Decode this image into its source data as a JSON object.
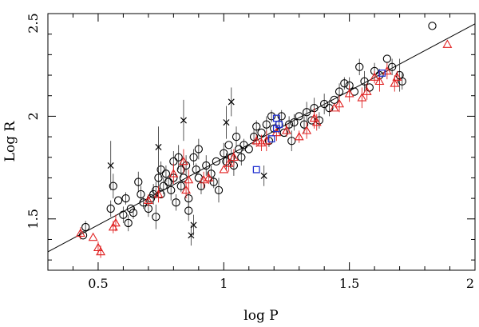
{
  "chart_data": {
    "type": "scatter",
    "title": "",
    "xlabel": "log P",
    "ylabel": "Log R",
    "xlim": [
      0.3,
      2.0
    ],
    "ylim": [
      1.25,
      2.5
    ],
    "grid": false,
    "xticks": [
      {
        "value": 0.5,
        "label": "0.5"
      },
      {
        "value": 1.0,
        "label": "1"
      },
      {
        "value": 1.5,
        "label": "1.5"
      },
      {
        "value": 2.0,
        "label": "2"
      }
    ],
    "yticks": [
      {
        "value": 1.5,
        "label": "1.5"
      },
      {
        "value": 2.0,
        "label": "2"
      },
      {
        "value": 2.5,
        "label": "2.5"
      }
    ],
    "fit_line": {
      "x": [
        0.3,
        2.0
      ],
      "y": [
        1.34,
        2.45
      ]
    },
    "series": [
      {
        "name": "circles",
        "marker": "circle",
        "color": "#000000",
        "points": [
          [
            0.44,
            1.42,
            0
          ],
          [
            0.45,
            1.46,
            0.03
          ],
          [
            0.55,
            1.55,
            0.04
          ],
          [
            0.56,
            1.66,
            0.06
          ],
          [
            0.58,
            1.59,
            0
          ],
          [
            0.6,
            1.52,
            0.04
          ],
          [
            0.61,
            1.6,
            0.03
          ],
          [
            0.62,
            1.48,
            0.04
          ],
          [
            0.63,
            1.55,
            0
          ],
          [
            0.64,
            1.53,
            0.03
          ],
          [
            0.66,
            1.68,
            0.05
          ],
          [
            0.67,
            1.62,
            0.04
          ],
          [
            0.68,
            1.58,
            0.03
          ],
          [
            0.7,
            1.55,
            0.04
          ],
          [
            0.71,
            1.6,
            0
          ],
          [
            0.72,
            1.62,
            0.05
          ],
          [
            0.73,
            1.64,
            0.04
          ],
          [
            0.73,
            1.51,
            0.06
          ],
          [
            0.74,
            1.7,
            0.05
          ],
          [
            0.75,
            1.74,
            0.04
          ],
          [
            0.75,
            1.62,
            0
          ],
          [
            0.76,
            1.66,
            0.04
          ],
          [
            0.77,
            1.72,
            0.04
          ],
          [
            0.78,
            1.68,
            0.03
          ],
          [
            0.79,
            1.64,
            0.05
          ],
          [
            0.8,
            1.78,
            0.05
          ],
          [
            0.8,
            1.7,
            0
          ],
          [
            0.81,
            1.58,
            0.04
          ],
          [
            0.82,
            1.8,
            0.06
          ],
          [
            0.83,
            1.74,
            0.04
          ],
          [
            0.83,
            1.66,
            0.03
          ],
          [
            0.84,
            1.7,
            0
          ],
          [
            0.85,
            1.76,
            0.05
          ],
          [
            0.86,
            1.6,
            0.04
          ],
          [
            0.86,
            1.54,
            0.05
          ],
          [
            0.88,
            1.8,
            0.04
          ],
          [
            0.89,
            1.74,
            0.03
          ],
          [
            0.9,
            1.7,
            0
          ],
          [
            0.9,
            1.84,
            0.05
          ],
          [
            0.91,
            1.66,
            0.04
          ],
          [
            0.93,
            1.76,
            0.05
          ],
          [
            0.95,
            1.72,
            0.04
          ],
          [
            0.96,
            1.68,
            0.03
          ],
          [
            0.97,
            1.78,
            0
          ],
          [
            0.98,
            1.64,
            0.06
          ],
          [
            1.0,
            1.82,
            0.05
          ],
          [
            1.01,
            1.78,
            0.04
          ],
          [
            1.02,
            1.86,
            0
          ],
          [
            1.03,
            1.8,
            0.04
          ],
          [
            1.04,
            1.76,
            0.05
          ],
          [
            1.05,
            1.9,
            0.05
          ],
          [
            1.06,
            1.84,
            0
          ],
          [
            1.07,
            1.8,
            0.04
          ],
          [
            1.08,
            1.86,
            0.03
          ],
          [
            1.1,
            1.84,
            0
          ],
          [
            1.12,
            1.9,
            0.04
          ],
          [
            1.13,
            1.95,
            0.03
          ],
          [
            1.15,
            1.92,
            0
          ],
          [
            1.17,
            1.96,
            0.04
          ],
          [
            1.18,
            1.88,
            0.03
          ],
          [
            1.19,
            2.0,
            0.03
          ],
          [
            1.2,
            1.94,
            0
          ],
          [
            1.22,
            1.96,
            0.04
          ],
          [
            1.23,
            2.0,
            0.03
          ],
          [
            1.24,
            1.92,
            0
          ],
          [
            1.26,
            1.96,
            0.04
          ],
          [
            1.27,
            1.88,
            0.05
          ],
          [
            1.28,
            1.97,
            0.04
          ],
          [
            1.3,
            2.0,
            0
          ],
          [
            1.32,
            1.96,
            0.04
          ],
          [
            1.33,
            2.02,
            0.05
          ],
          [
            1.35,
            1.98,
            0
          ],
          [
            1.36,
            2.04,
            0.05
          ],
          [
            1.38,
            1.98,
            0.04
          ],
          [
            1.4,
            2.06,
            0.05
          ],
          [
            1.42,
            2.04,
            0.04
          ],
          [
            1.44,
            2.08,
            0
          ],
          [
            1.46,
            2.12,
            0.04
          ],
          [
            1.48,
            2.16,
            0.03
          ],
          [
            1.5,
            2.15,
            0.04
          ],
          [
            1.52,
            2.12,
            0
          ],
          [
            1.54,
            2.24,
            0.04
          ],
          [
            1.56,
            2.17,
            0.05
          ],
          [
            1.58,
            2.14,
            0
          ],
          [
            1.6,
            2.22,
            0.04
          ],
          [
            1.62,
            2.2,
            0.03
          ],
          [
            1.65,
            2.28,
            0
          ],
          [
            1.67,
            2.24,
            0.04
          ],
          [
            1.7,
            2.2,
            0.08
          ],
          [
            1.71,
            2.17,
            0.04
          ],
          [
            1.83,
            2.44,
            0
          ]
        ]
      },
      {
        "name": "crosses",
        "marker": "cross",
        "color": "#000000",
        "points": [
          [
            0.55,
            1.76,
            0.12
          ],
          [
            0.74,
            1.85,
            0.1
          ],
          [
            0.84,
            1.98,
            0.1
          ],
          [
            0.87,
            1.42,
            0.05
          ],
          [
            0.88,
            1.47,
            0.05
          ],
          [
            1.01,
            1.97,
            0.08
          ],
          [
            1.03,
            2.07,
            0.07
          ],
          [
            1.16,
            1.71,
            0.05
          ]
        ]
      },
      {
        "name": "triangles",
        "marker": "triangle",
        "color": "#e02020",
        "points": [
          [
            0.43,
            1.43,
            0.03
          ],
          [
            0.48,
            1.41,
            0
          ],
          [
            0.5,
            1.36,
            0.03
          ],
          [
            0.51,
            1.34,
            0.03
          ],
          [
            0.56,
            1.46,
            0.03
          ],
          [
            0.57,
            1.48,
            0.04
          ],
          [
            0.7,
            1.59,
            0.03
          ],
          [
            0.74,
            1.62,
            0.04
          ],
          [
            0.8,
            1.72,
            0.05
          ],
          [
            0.84,
            1.78,
            0.06
          ],
          [
            0.85,
            1.64,
            0.04
          ],
          [
            0.86,
            1.69,
            0.05
          ],
          [
            0.92,
            1.69,
            0.04
          ],
          [
            0.94,
            1.7,
            0.03
          ],
          [
            1.0,
            1.74,
            0
          ],
          [
            1.02,
            1.77,
            0.04
          ],
          [
            1.04,
            1.8,
            0.04
          ],
          [
            1.13,
            1.88,
            0.03
          ],
          [
            1.15,
            1.87,
            0.04
          ],
          [
            1.17,
            1.88,
            0.05
          ],
          [
            1.21,
            1.92,
            0.04
          ],
          [
            1.25,
            1.93,
            0.03
          ],
          [
            1.3,
            1.9,
            0.03
          ],
          [
            1.33,
            1.93,
            0.04
          ],
          [
            1.36,
            1.99,
            0.05
          ],
          [
            1.37,
            1.97,
            0.04
          ],
          [
            1.44,
            2.04,
            0
          ],
          [
            1.46,
            2.06,
            0.04
          ],
          [
            1.5,
            2.11,
            0.04
          ],
          [
            1.55,
            2.09,
            0.05
          ],
          [
            1.57,
            2.12,
            0.04
          ],
          [
            1.6,
            2.19,
            0.03
          ],
          [
            1.62,
            2.17,
            0.05
          ],
          [
            1.65,
            2.22,
            0.04
          ],
          [
            1.68,
            2.16,
            0.04
          ],
          [
            1.69,
            2.19,
            0.03
          ],
          [
            1.89,
            2.35,
            0
          ]
        ]
      },
      {
        "name": "squares",
        "marker": "square",
        "color": "#2030d0",
        "points": [
          [
            1.13,
            1.74,
            0
          ],
          [
            1.19,
            1.89,
            0
          ],
          [
            1.21,
            1.94,
            0
          ],
          [
            1.21,
            1.99,
            0
          ],
          [
            1.22,
            1.96,
            0
          ],
          [
            1.63,
            2.21,
            0
          ]
        ]
      }
    ]
  }
}
